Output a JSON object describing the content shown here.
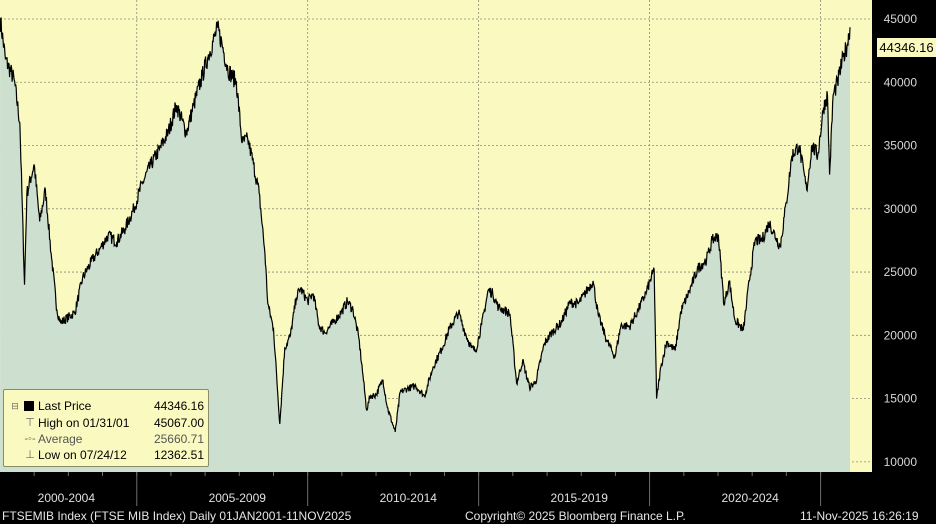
{
  "chart_data": {
    "type": "area",
    "title": "FTSEMIB Index (FTSE MIB Index) Daily 01JAN2001-11NOV2025",
    "xlabel": "",
    "ylabel": "",
    "ylim": [
      9200,
      46500
    ],
    "y_ticks": [
      10000,
      15000,
      20000,
      25000,
      30000,
      35000,
      40000,
      45000
    ],
    "x_ticks": [
      "2000-2004",
      "2005-2009",
      "2010-2014",
      "2015-2019",
      "2020-2024"
    ],
    "grid": true,
    "legend_position": "bottom-left",
    "series": [
      {
        "name": "Last Price",
        "x": [
          "2001-01-02",
          "2001-03-01",
          "2001-06-01",
          "2001-08-01",
          "2001-09-20",
          "2001-10-15",
          "2002-01-01",
          "2002-03-01",
          "2002-05-01",
          "2002-07-01",
          "2002-09-01",
          "2002-10-10",
          "2003-03-12",
          "2003-06-01",
          "2003-09-01",
          "2003-12-01",
          "2004-03-01",
          "2004-06-01",
          "2004-09-01",
          "2004-12-01",
          "2005-03-01",
          "2005-06-01",
          "2005-09-01",
          "2005-12-01",
          "2006-03-01",
          "2006-06-15",
          "2006-09-01",
          "2006-12-01",
          "2007-02-01",
          "2007-05-15",
          "2007-07-01",
          "2007-09-01",
          "2007-12-01",
          "2008-02-01",
          "2008-04-01",
          "2008-06-01",
          "2008-08-01",
          "2008-10-01",
          "2008-11-01",
          "2009-01-01",
          "2009-03-09",
          "2009-05-01",
          "2009-07-01",
          "2009-09-01",
          "2009-10-15",
          "2010-01-01",
          "2010-03-01",
          "2010-05-01",
          "2010-07-01",
          "2010-10-01",
          "2011-01-01",
          "2011-03-01",
          "2011-05-01",
          "2011-07-01",
          "2011-08-15",
          "2011-09-22",
          "2011-11-01",
          "2012-01-01",
          "2012-03-15",
          "2012-05-01",
          "2012-07-24",
          "2012-09-15",
          "2012-12-01",
          "2013-03-01",
          "2013-06-01",
          "2013-09-01",
          "2013-12-01",
          "2014-03-01",
          "2014-06-01",
          "2014-08-01",
          "2014-10-15",
          "2014-12-01",
          "2015-02-01",
          "2015-04-15",
          "2015-06-01",
          "2015-08-01",
          "2015-10-01",
          "2015-12-01",
          "2016-02-11",
          "2016-04-15",
          "2016-06-27",
          "2016-09-01",
          "2016-12-01",
          "2017-03-01",
          "2017-06-01",
          "2017-09-01",
          "2017-12-01",
          "2018-02-01",
          "2018-05-07",
          "2018-07-01",
          "2018-10-01",
          "2018-12-27",
          "2019-03-01",
          "2019-06-01",
          "2019-09-01",
          "2019-12-01",
          "2020-02-19",
          "2020-03-16",
          "2020-05-01",
          "2020-07-01",
          "2020-10-01",
          "2020-12-01",
          "2021-03-01",
          "2021-06-01",
          "2021-09-01",
          "2021-11-01",
          "2022-01-05",
          "2022-03-07",
          "2022-05-01",
          "2022-07-01",
          "2022-09-29",
          "2022-12-01",
          "2023-02-01",
          "2023-04-15",
          "2023-07-01",
          "2023-09-15",
          "2023-10-27",
          "2024-01-01",
          "2024-03-01",
          "2024-05-15",
          "2024-08-05",
          "2024-10-01",
          "2024-12-01",
          "2025-02-01",
          "2025-03-15",
          "2025-04-07",
          "2025-05-15",
          "2025-07-01",
          "2025-09-01",
          "2025-10-15",
          "2025-11-11"
        ],
        "values": [
          45067,
          41800,
          40200,
          36800,
          24000,
          31200,
          33500,
          29000,
          31500,
          26500,
          22000,
          21000,
          21800,
          24500,
          25800,
          26800,
          27900,
          27400,
          28500,
          30000,
          32000,
          33500,
          34700,
          36000,
          38200,
          36000,
          38200,
          40500,
          42000,
          44300,
          43000,
          41000,
          40000,
          35200,
          35500,
          33500,
          31200,
          26500,
          22500,
          20500,
          13000,
          19000,
          20000,
          23000,
          23700,
          22700,
          23300,
          20800,
          20200,
          21000,
          21900,
          22700,
          22000,
          19800,
          16800,
          14100,
          15200,
          15300,
          16500,
          14300,
          12363,
          15500,
          15800,
          16000,
          15200,
          17500,
          18900,
          20600,
          21800,
          20400,
          19000,
          18800,
          20800,
          23600,
          23300,
          22200,
          22000,
          21700,
          16200,
          18000,
          15900,
          16300,
          19300,
          20300,
          21000,
          22600,
          22500,
          23200,
          24300,
          21600,
          19600,
          18300,
          20800,
          20700,
          22000,
          23500,
          25200,
          15000,
          17500,
          19500,
          18800,
          21900,
          23500,
          25300,
          26000,
          27500,
          27900,
          22400,
          24300,
          21200,
          20400,
          24300,
          27500,
          27500,
          28900,
          27700,
          27000,
          30500,
          34200,
          35000,
          31500,
          35000,
          34200,
          38000,
          39000,
          32700,
          39000,
          40000,
          42000,
          43000,
          44346
        ]
      }
    ],
    "stats": [
      {
        "label": "Last Price",
        "value": "44346.16"
      },
      {
        "label": "High on 01/31/01",
        "value": "45067.00"
      },
      {
        "label": "Average",
        "value": "25660.71"
      },
      {
        "label": "Low on 07/24/12",
        "value": "12362.51"
      }
    ],
    "last_price_label": "44346.16"
  },
  "footer": {
    "left": "FTSEMIB Index (FTSE MIB Index) Daily 01JAN2001-11NOV2025",
    "center": "Copyright© 2025 Bloomberg Finance L.P.",
    "right": "11-Nov-2025 16:26:19"
  },
  "colors": {
    "background": "#000000",
    "plot_background": "#fafac0",
    "area_fill": "#cde0d0",
    "line": "#000000",
    "grid": "#8a8a78"
  }
}
